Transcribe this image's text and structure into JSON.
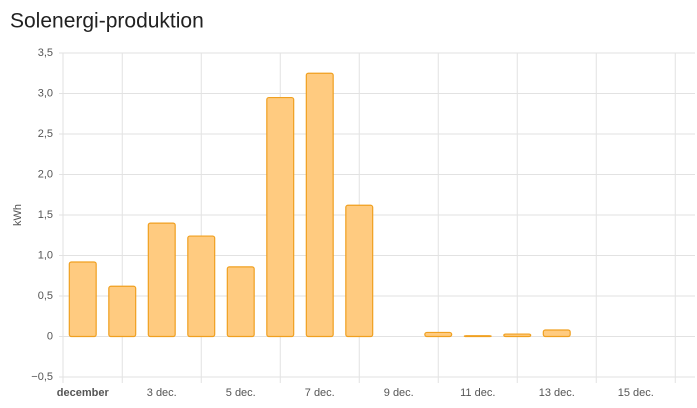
{
  "chart_data": {
    "type": "bar",
    "title": "Solenergi-produktion",
    "y_label": "kWh",
    "categories": [
      "december",
      null,
      "3 dec.",
      null,
      "5 dec.",
      null,
      "7 dec.",
      null,
      "9 dec.",
      null,
      "11 dec.",
      null,
      "13 dec.",
      null,
      "15 dec.",
      null
    ],
    "values": [
      0.92,
      0.62,
      1.4,
      1.24,
      0.86,
      2.95,
      3.25,
      1.62,
      null,
      0.05,
      0.01,
      0.03,
      0.08,
      null,
      null,
      null
    ],
    "color": "#ffcb80",
    "border_color": "#f0a020",
    "ylim": [
      -0.5,
      3.5
    ],
    "yticks": [
      {
        "value": -0.5,
        "label": "−0,5"
      },
      0,
      {
        "value": 0.5,
        "label": "0,5"
      },
      {
        "value": 1,
        "label": "1,0"
      },
      {
        "value": 1.5,
        "label": "1,5"
      },
      {
        "value": 2,
        "label": "2,0"
      },
      {
        "value": 2.5,
        "label": "2,5"
      },
      {
        "value": 3,
        "label": "3,0"
      },
      {
        "value": 3.5,
        "label": "3,5"
      }
    ],
    "grid": true
  }
}
